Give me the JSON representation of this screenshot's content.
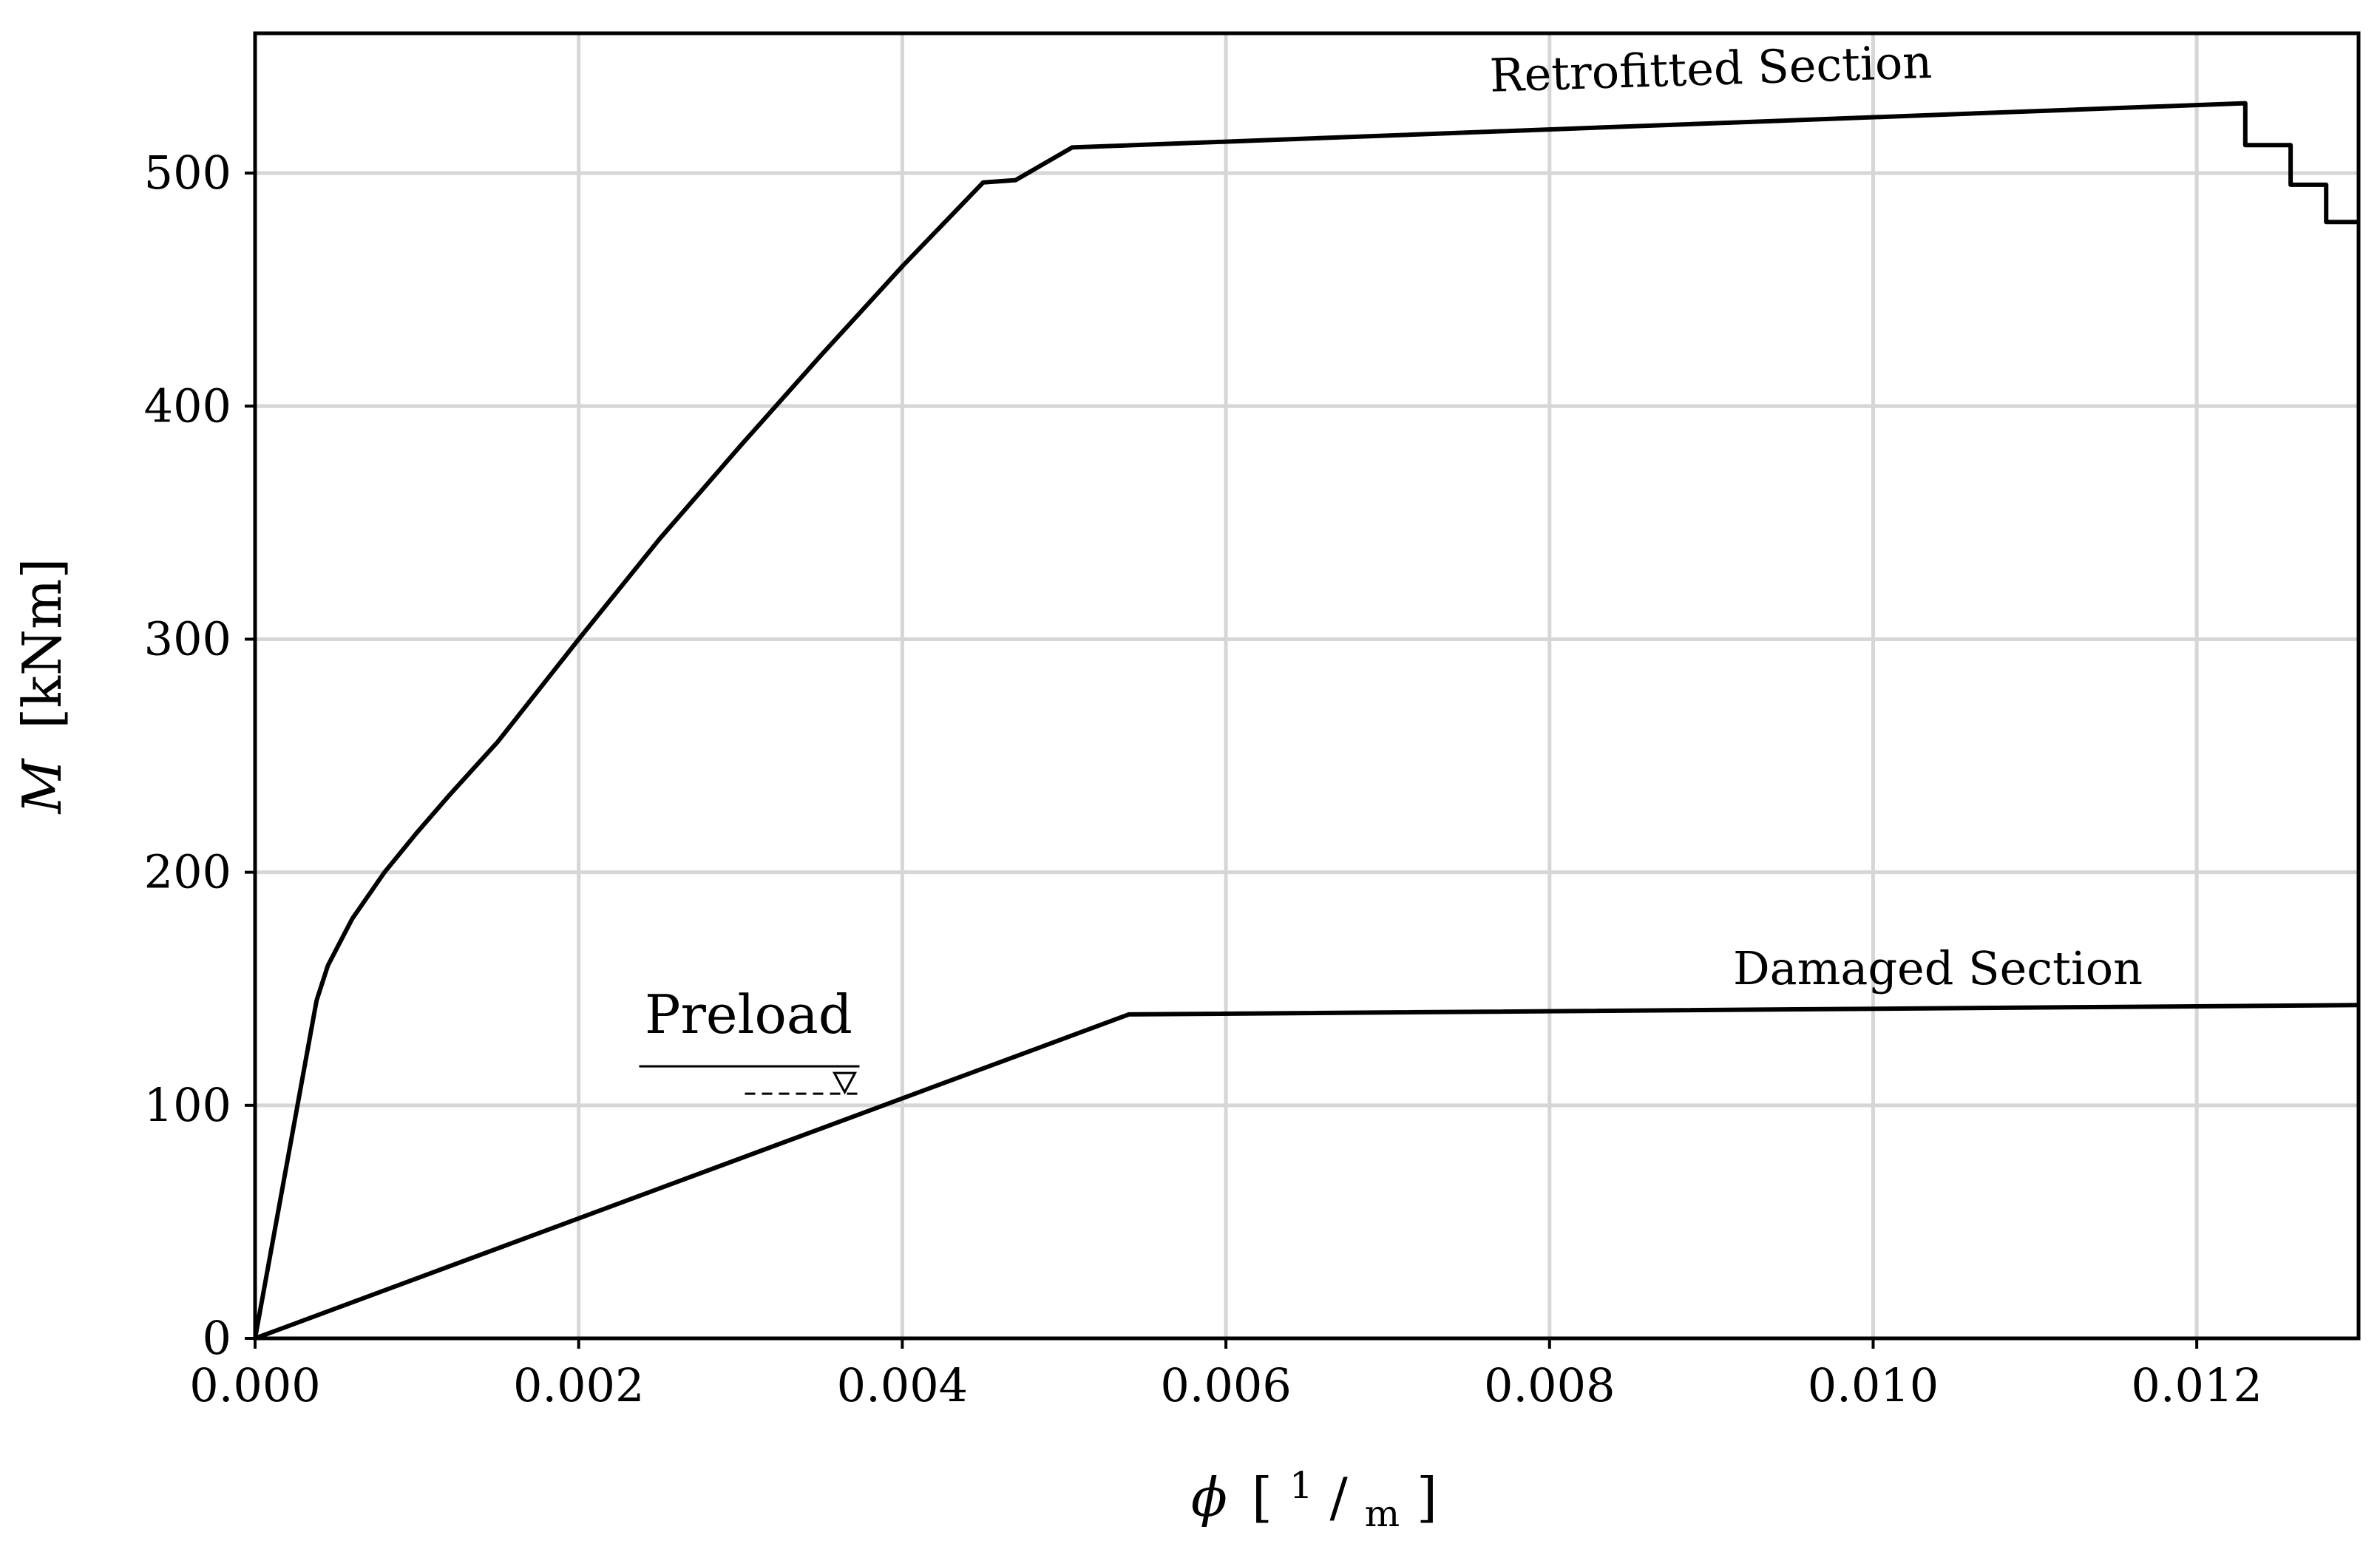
{
  "chart_data": {
    "type": "line",
    "title": "",
    "xlabel": {
      "symbol": "ϕ",
      "unit_open": "[",
      "unit_numerator": "1",
      "unit_slash": "/",
      "unit_denominator": "m",
      "unit_close": "]"
    },
    "ylabel": {
      "symbol": "M",
      "unit": "[kNm]"
    },
    "xlim": [
      0,
      0.013
    ],
    "ylim": [
      0,
      560
    ],
    "xticks": [
      0.0,
      0.002,
      0.004,
      0.006,
      0.008,
      0.01,
      0.012
    ],
    "xtick_labels": [
      "0.000",
      "0.002",
      "0.004",
      "0.006",
      "0.008",
      "0.010",
      "0.012"
    ],
    "yticks": [
      0,
      100,
      200,
      300,
      400,
      500
    ],
    "ytick_labels": [
      "0",
      "100",
      "200",
      "300",
      "400",
      "500"
    ],
    "grid": true,
    "series": [
      {
        "name": "Retrofitted Section",
        "x": [
          0,
          0.00038,
          0.00045,
          0.0006,
          0.0008,
          0.001,
          0.0012,
          0.0015,
          0.002,
          0.0025,
          0.003,
          0.0035,
          0.004,
          0.0045,
          0.0047,
          0.00505,
          0.0123,
          0.0123,
          0.01258,
          0.01258,
          0.0128,
          0.0128,
          0.013
        ],
        "y": [
          0,
          145,
          160,
          180,
          200,
          217,
          233,
          256,
          300,
          343,
          383,
          422,
          460,
          496,
          497,
          511,
          530,
          512,
          512,
          495,
          495,
          479,
          479
        ]
      },
      {
        "name": "Damaged Section",
        "x": [
          0,
          0.0054,
          0.013
        ],
        "y": [
          0,
          139,
          143
        ]
      }
    ],
    "annotations": [
      {
        "text": "Retrofitted Section",
        "x": 0.009,
        "y": 538
      },
      {
        "text": "Damaged Section",
        "x": 0.0104,
        "y": 152
      },
      {
        "text": "Preload",
        "x": 0.00305,
        "y": 131
      }
    ]
  }
}
